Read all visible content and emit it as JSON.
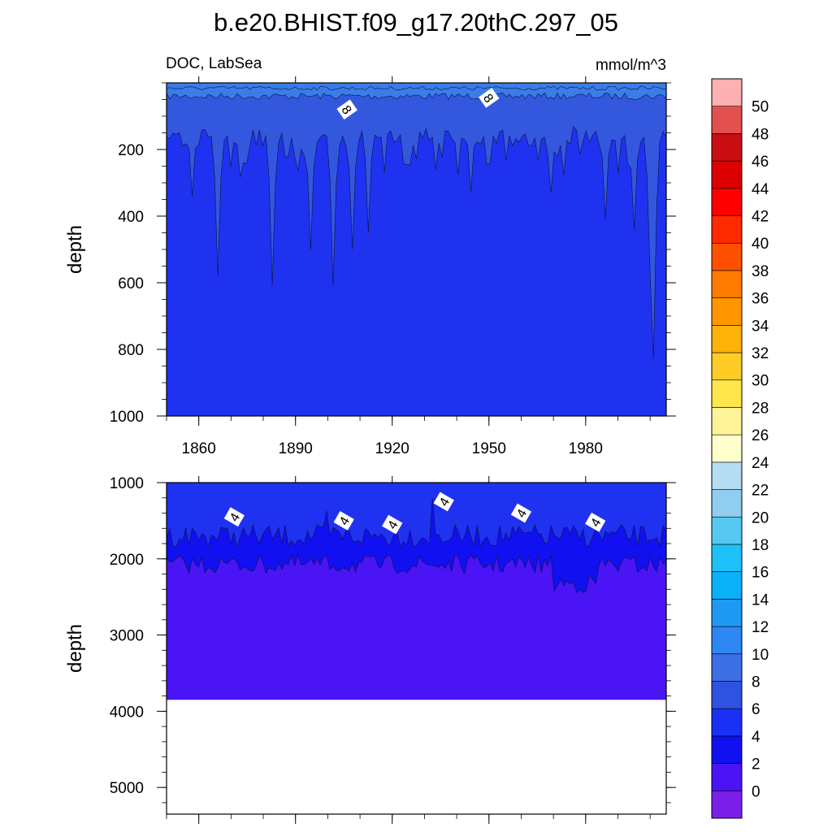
{
  "chart_data": {
    "type": "contour",
    "title": "b.e20.BHIST.f09_g17.20thC.297_05",
    "variable_label": "DOC, LabSea",
    "units_label": "mmol/m^3",
    "colorbar": {
      "levels": [
        "0",
        "2",
        "4",
        "6",
        "8",
        "10",
        "12",
        "14",
        "16",
        "18",
        "20",
        "22",
        "24",
        "26",
        "28",
        "30",
        "32",
        "34",
        "36",
        "38",
        "40",
        "42",
        "44",
        "46",
        "48",
        "50"
      ],
      "colors": [
        "#7a1fe8",
        "#4a14f5",
        "#1010f0",
        "#1a30f2",
        "#2f52e0",
        "#3c6ee6",
        "#2e86f2",
        "#1e9af5",
        "#0ab0f8",
        "#1ec0f8",
        "#56c8f2",
        "#90cdee",
        "#b4dcf2",
        "#ffffcc",
        "#fff39a",
        "#ffe64a",
        "#ffcc26",
        "#ffb20a",
        "#ff9600",
        "#ff7a00",
        "#ff5000",
        "#ff2a00",
        "#ff0000",
        "#dc0000",
        "#c80e12",
        "#e25050",
        "#ffb0b0"
      ]
    },
    "panels": [
      {
        "name": "upper",
        "ylabel": "depth",
        "xlabel": "",
        "xlim": [
          1850,
          2005
        ],
        "ylim": [
          1000,
          0
        ],
        "xticks": [
          1860,
          1890,
          1920,
          1950,
          1980
        ],
        "yticks": [
          200,
          400,
          600,
          800,
          1000
        ],
        "contour_labels": [
          {
            "x": 1906,
            "y": 80,
            "text": "8"
          },
          {
            "x": 1950,
            "y": 45,
            "text": "8"
          }
        ],
        "bands": [
          {
            "level_color": "#3a7de8",
            "from_depth": 0,
            "to_depth_mean": 40
          },
          {
            "level_color": "#3358de",
            "from_depth_mean": 40,
            "to_depth_mean": 150
          },
          {
            "level_color": "#1f32f0",
            "from_depth_mean": 150,
            "to_depth": 1000
          }
        ]
      },
      {
        "name": "lower",
        "ylabel": "depth",
        "xlabel": "",
        "xlim": [
          1850,
          2005
        ],
        "ylim": [
          5350,
          1000
        ],
        "xticks": [
          1860,
          1890,
          1920,
          1950,
          1980
        ],
        "yticks": [
          1000,
          2000,
          3000,
          4000,
          5000
        ],
        "bottom_depth": 3850,
        "contour_labels": [
          {
            "x": 1871,
            "y": 1450,
            "text": "4"
          },
          {
            "x": 1905,
            "y": 1500,
            "text": "4"
          },
          {
            "x": 1920,
            "y": 1550,
            "text": "4"
          },
          {
            "x": 1936,
            "y": 1250,
            "text": "4"
          },
          {
            "x": 1960,
            "y": 1400,
            "text": "4"
          },
          {
            "x": 1983,
            "y": 1520,
            "text": "4"
          }
        ]
      }
    ]
  }
}
